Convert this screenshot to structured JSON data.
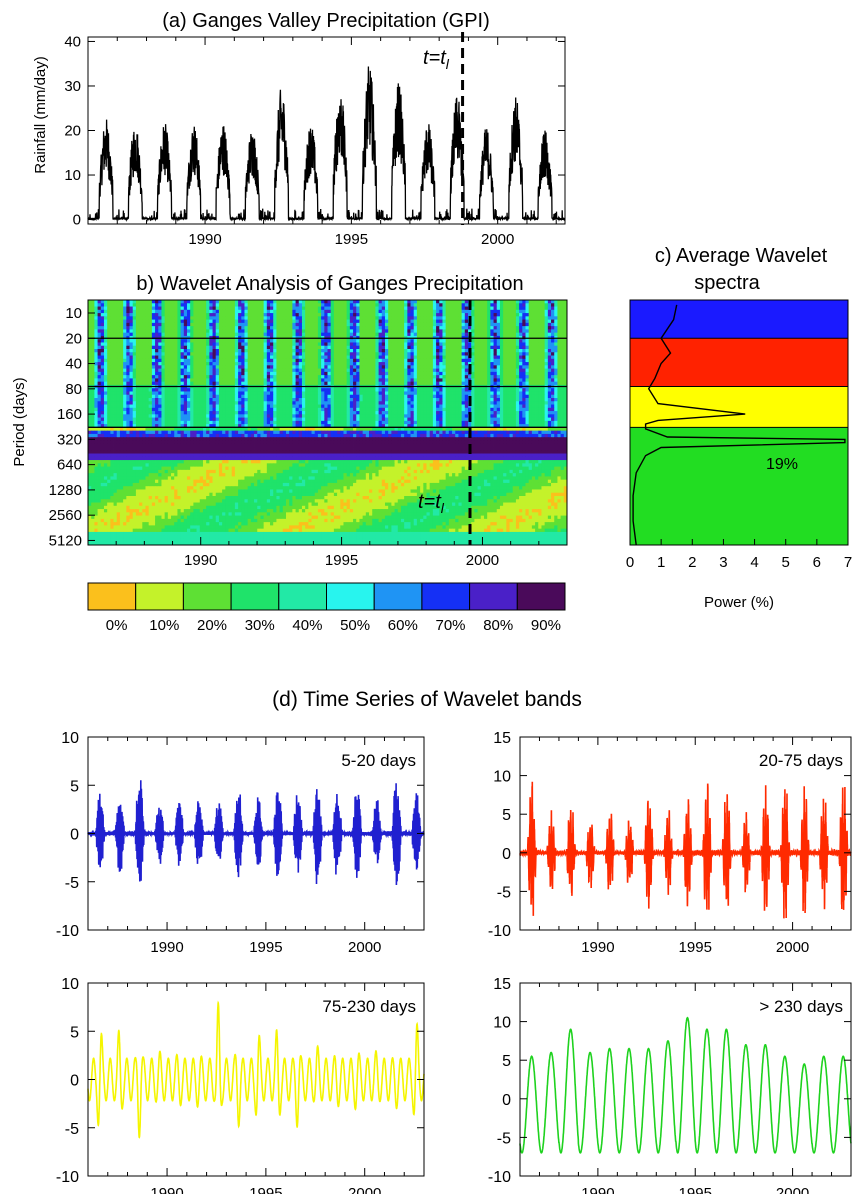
{
  "panel_a": {
    "title": "(a) Ganges Valley Precipitation (GPI)",
    "ylabel": "Rainfall (mm/day)",
    "marker_label_main": "t=t",
    "marker_label_sub": "l"
  },
  "panel_b": {
    "title": "b) Wavelet Analysis of Ganges Precipitation",
    "ylabel": "Period (days)",
    "marker_label_main": "t=t",
    "marker_label_sub": "l"
  },
  "panel_c": {
    "title_line1": "c) Average Wavelet",
    "title_line2": "spectra",
    "xlabel": "Power (%)",
    "annotation": "19%"
  },
  "panel_d": {
    "title": "(d) Time Series of Wavelet bands",
    "bands": [
      {
        "label": "5-20 days",
        "color": "#2020d0"
      },
      {
        "label": "20-75 days",
        "color": "#ff2a00"
      },
      {
        "label": "75-230 days",
        "color": "#f5f500"
      },
      {
        "label": "> 230 days",
        "color": "#1ed21e"
      }
    ]
  },
  "colorbar": {
    "colors": [
      "#fbc01c",
      "#c4f22a",
      "#5ee034",
      "#1fe36a",
      "#22e9a6",
      "#28f4ee",
      "#1f94f4",
      "#1530f5",
      "#4a20c8",
      "#4a0a5a"
    ],
    "labels": [
      "0%",
      "10%",
      "20%",
      "30%",
      "40%",
      "50%",
      "60%",
      "70%",
      "80%",
      "90%"
    ]
  },
  "chart_data": [
    {
      "type": "line",
      "title": "(a) Ganges Valley Precipitation (GPI)",
      "xlabel": "",
      "ylabel": "Rainfall (mm/day)",
      "xlim": [
        1986,
        2002.3
      ],
      "ylim": [
        -1,
        41
      ],
      "xticks": [
        1990,
        1995,
        2000
      ],
      "yticks": [
        0,
        10,
        20,
        30,
        40
      ],
      "series": [
        {
          "x": [
            1986.6,
            1987.6,
            1988.6,
            1989.6,
            1990.6,
            1991.6,
            1992.6,
            1993.6,
            1994.6,
            1995.6,
            1996.6,
            1997.6,
            1998.6,
            1999.6,
            2000.6,
            2001.6
          ],
          "values": [
            23,
            22,
            22,
            22,
            22,
            21,
            30,
            22,
            30,
            35,
            31,
            22,
            28,
            21,
            28,
            20
          ]
        }
      ],
      "vertical_marker": 1998.8
    },
    {
      "type": "heatmap",
      "title": "b) Wavelet Analysis of Ganges Precipitation",
      "ylabel": "Period (days)",
      "xlim": [
        1986,
        2003
      ],
      "xticks": [
        1990,
        1995,
        2000
      ],
      "yticks": [
        10,
        20,
        40,
        80,
        160,
        320,
        640,
        1280,
        2560,
        5120
      ],
      "band_boundaries_days": [
        20,
        75,
        230
      ],
      "vertical_marker": 1999.6
    },
    {
      "type": "line",
      "title": "c) Average Wavelet spectra",
      "xlabel": "Power (%)",
      "xlim": [
        0,
        7
      ],
      "xticks": [
        0,
        1,
        2,
        3,
        4,
        5,
        6,
        7
      ],
      "bands": [
        {
          "range_days": [
            5,
            20
          ],
          "color": "#1a1aff"
        },
        {
          "range_days": [
            20,
            75
          ],
          "color": "#ff2200"
        },
        {
          "range_days": [
            75,
            230
          ],
          "color": "#ffff00"
        },
        {
          "range_days": [
            230,
            5800
          ],
          "color": "#22dd22"
        }
      ],
      "spectrum": {
        "period_days": [
          8,
          12,
          20,
          30,
          40,
          60,
          80,
          120,
          160,
          190,
          210,
          240,
          300,
          320,
          350,
          400,
          500,
          800,
          1500,
          3000,
          5800
        ],
        "power": [
          1.5,
          1.4,
          1.0,
          1.3,
          1.0,
          0.8,
          0.6,
          0.9,
          3.7,
          0.9,
          0.5,
          0.5,
          1.2,
          6.9,
          6.9,
          1.0,
          0.5,
          0.2,
          0.1,
          0.1,
          0.2
        ]
      },
      "annotation": "19%"
    },
    {
      "type": "line",
      "title": "5-20 days",
      "xlim": [
        1986,
        2003
      ],
      "ylim": [
        -10,
        10
      ],
      "xticks": [
        1990,
        1995,
        2000
      ],
      "yticks": [
        -10,
        -5,
        0,
        5,
        10
      ],
      "series": [
        {
          "x": [
            1986.6,
            1987.6,
            1988.6,
            1989.6,
            1990.6,
            1991.6,
            1992.6,
            1993.6,
            1994.6,
            1995.6,
            1996.6,
            1997.6,
            1998.6,
            1999.6,
            2000.6,
            2001.6
          ],
          "values": [
            4.5,
            4.5,
            6.5,
            3.5,
            3.5,
            4,
            3.5,
            5,
            4,
            5,
            4.5,
            6,
            5,
            5,
            4,
            6.5
          ]
        }
      ],
      "color": "#2020d0"
    },
    {
      "type": "line",
      "title": "20-75 days",
      "xlim": [
        1986,
        2003
      ],
      "ylim": [
        -10,
        15
      ],
      "xticks": [
        1990,
        1995,
        2000
      ],
      "yticks": [
        -10,
        -5,
        0,
        5,
        10,
        15
      ],
      "series": [
        {
          "x": [
            1986.6,
            1987.6,
            1988.6,
            1989.6,
            1990.6,
            1991.6,
            1992.6,
            1993.6,
            1994.6,
            1995.6,
            1996.6,
            1997.6,
            1998.6,
            1999.6,
            2000.6,
            2001.6
          ],
          "values": [
            10,
            6,
            7,
            5,
            6,
            5,
            8,
            6,
            8,
            10,
            9,
            6,
            9,
            10,
            9,
            8
          ]
        }
      ],
      "color": "#ff2a00"
    },
    {
      "type": "line",
      "title": "75-230 days",
      "xlim": [
        1986,
        2003
      ],
      "ylim": [
        -10,
        10
      ],
      "xticks": [
        1990,
        1995,
        2000
      ],
      "yticks": [
        -10,
        -5,
        0,
        5,
        10
      ],
      "series": [
        {
          "x": [
            1986.6,
            1987.6,
            1988.6,
            1989.6,
            1990.6,
            1991.6,
            1992.6,
            1993.6,
            1994.6,
            1995.6,
            1996.6,
            1997.6,
            1998.6,
            1999.6,
            2000.6,
            2001.6
          ],
          "values": [
            6.5,
            5.5,
            6,
            3,
            3,
            3,
            8,
            5,
            5.5,
            6,
            5,
            3.5,
            3,
            3.5,
            3,
            3
          ]
        }
      ],
      "color": "#f5f500"
    },
    {
      "type": "line",
      "title": "> 230 days",
      "xlim": [
        1986,
        2003
      ],
      "ylim": [
        -10,
        15
      ],
      "xticks": [
        1990,
        1995,
        2000
      ],
      "yticks": [
        -10,
        -5,
        0,
        5,
        10,
        15
      ],
      "series": [
        {
          "x": [
            1986.6,
            1987.6,
            1988.6,
            1989.6,
            1990.6,
            1991.6,
            1992.6,
            1993.6,
            1994.6,
            1995.6,
            1996.6,
            1997.6,
            1998.6,
            1999.6,
            2000.6,
            2001.6
          ],
          "values": [
            6,
            6.5,
            9.5,
            6.5,
            7,
            7,
            7,
            8,
            11,
            9.5,
            9.5,
            7.5,
            7.5,
            6,
            5,
            6
          ]
        }
      ],
      "color": "#1ed21e"
    }
  ]
}
